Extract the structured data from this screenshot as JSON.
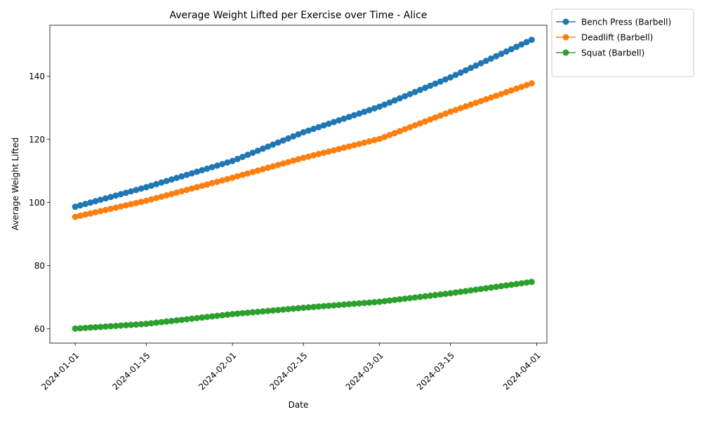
{
  "chart_data": {
    "type": "line",
    "title": "Average Weight Lifted per Exercise over Time - Alice",
    "xlabel": "Date",
    "ylabel": "Average Weight Lifted",
    "x_start": "2024-01-01",
    "x_end": "2024-03-31",
    "xlim": [
      "2023-12-27",
      "2024-04-03"
    ],
    "ylim": [
      55.4,
      156.1
    ],
    "x_ticks": [
      "2024-01-01",
      "2024-01-15",
      "2024-02-01",
      "2024-02-15",
      "2024-03-01",
      "2024-03-15",
      "2024-04-01"
    ],
    "y_ticks": [
      60,
      80,
      100,
      120,
      140
    ],
    "grid": false,
    "legend_position": "outside-top-right",
    "marker": "circle",
    "series": [
      {
        "name": "Bench Press (Barbell)",
        "color": "#1f77b4",
        "anchors": [
          [
            "2024-01-01",
            98.6
          ],
          [
            "2024-01-15",
            104.8
          ],
          [
            "2024-02-01",
            113.1
          ],
          [
            "2024-02-15",
            122.2
          ],
          [
            "2024-03-01",
            130.3
          ],
          [
            "2024-03-15",
            139.6
          ],
          [
            "2024-03-31",
            151.5
          ]
        ]
      },
      {
        "name": "Deadlift (Barbell)",
        "color": "#ff7f0e",
        "anchors": [
          [
            "2024-01-01",
            95.4
          ],
          [
            "2024-01-15",
            100.5
          ],
          [
            "2024-02-01",
            107.8
          ],
          [
            "2024-02-15",
            114.1
          ],
          [
            "2024-03-01",
            120.1
          ],
          [
            "2024-03-15",
            128.7
          ],
          [
            "2024-03-31",
            137.7
          ]
        ]
      },
      {
        "name": "Squat (Barbell)",
        "color": "#2ca02c",
        "anchors": [
          [
            "2024-01-01",
            60.0
          ],
          [
            "2024-01-15",
            61.5
          ],
          [
            "2024-02-01",
            64.6
          ],
          [
            "2024-02-15",
            66.6
          ],
          [
            "2024-03-01",
            68.5
          ],
          [
            "2024-03-15",
            71.2
          ],
          [
            "2024-03-31",
            74.8
          ]
        ]
      }
    ]
  }
}
